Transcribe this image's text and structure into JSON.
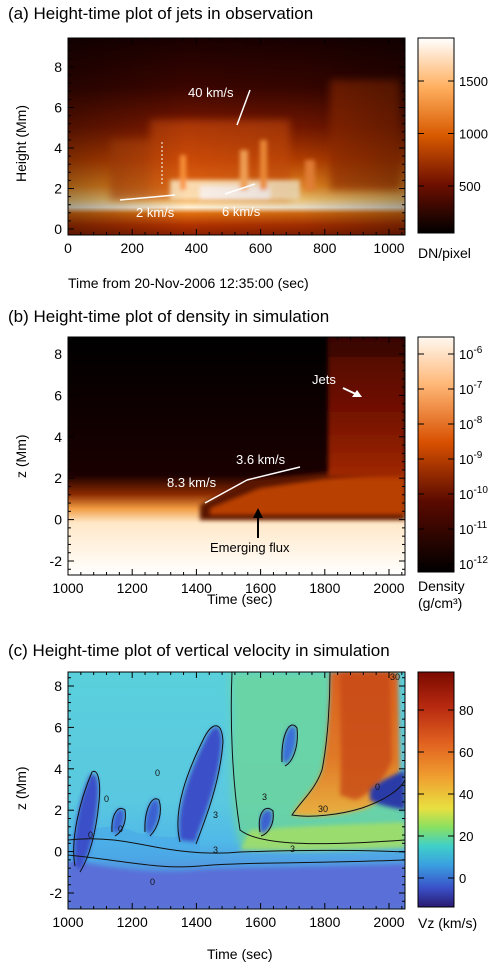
{
  "panels": [
    {
      "id": "a",
      "title": "(a) Height-time plot of jets in observation",
      "xlabel": "Time from 20-Nov-2006 12:35:00 (sec)",
      "ylabel": "Height (Mm)",
      "xticks": [
        "0",
        "200",
        "400",
        "600",
        "800",
        "1000"
      ],
      "yticks": [
        "0",
        "2",
        "4",
        "6",
        "8"
      ],
      "colorbar_ticks": [
        "1500",
        "1000",
        "500"
      ],
      "colorbar_label": "DN/pixel",
      "annotations": [
        "40 km/s",
        "2 km/s",
        "6 km/s"
      ]
    },
    {
      "id": "b",
      "title": "(b) Height-time plot of density in simulation",
      "xlabel": "Time (sec)",
      "ylabel": "z (Mm)",
      "xticks": [
        "1000",
        "1200",
        "1400",
        "1600",
        "1800",
        "2000"
      ],
      "yticks": [
        "-2",
        "0",
        "2",
        "4",
        "6",
        "8"
      ],
      "colorbar_ticks": [
        {
          "base": "10",
          "exp": "-6"
        },
        {
          "base": "10",
          "exp": "-7"
        },
        {
          "base": "10",
          "exp": "-8"
        },
        {
          "base": "10",
          "exp": "-9"
        },
        {
          "base": "10",
          "exp": "-10"
        },
        {
          "base": "10",
          "exp": "-11"
        },
        {
          "base": "10",
          "exp": "-12"
        }
      ],
      "colorbar_label": "Density",
      "colorbar_label2": "(g/cm³)",
      "annotations": [
        "Jets",
        "3.6 km/s",
        "8.3 km/s",
        "Emerging flux"
      ]
    },
    {
      "id": "c",
      "title": "(c) Height-time plot of vertical velocity in simulation",
      "xlabel": "Time (sec)",
      "ylabel": "z (Mm)",
      "xticks": [
        "1000",
        "1200",
        "1400",
        "1600",
        "1800",
        "2000"
      ],
      "yticks": [
        "-2",
        "0",
        "2",
        "4",
        "6",
        "8"
      ],
      "colorbar_ticks": [
        "80",
        "60",
        "40",
        "20",
        "0"
      ],
      "colorbar_label": "Vz (km/s)",
      "contour_labels": [
        "0",
        "0",
        "0",
        "0",
        "3",
        "3",
        "3",
        "3",
        "30",
        "30",
        "0",
        "0"
      ]
    }
  ]
}
